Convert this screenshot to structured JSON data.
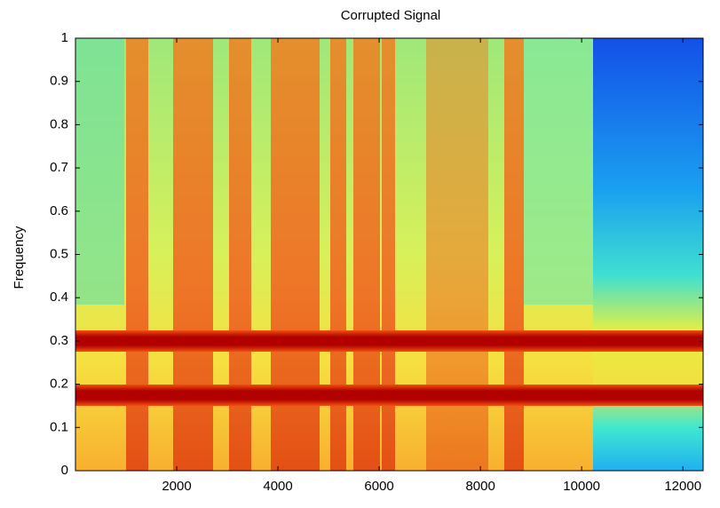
{
  "chart_data": {
    "type": "spectrogram",
    "title": "Corrupted Signal",
    "y_label": "Frequency",
    "xlim": [
      0,
      12400
    ],
    "xticks": [
      2000,
      4000,
      6000,
      8000,
      10000,
      12000
    ],
    "ylim": [
      0,
      1
    ],
    "yticks": [
      0,
      0.1,
      0.2,
      0.3,
      0.4,
      0.5,
      0.6,
      0.7,
      0.8,
      0.9,
      1
    ]
  }
}
